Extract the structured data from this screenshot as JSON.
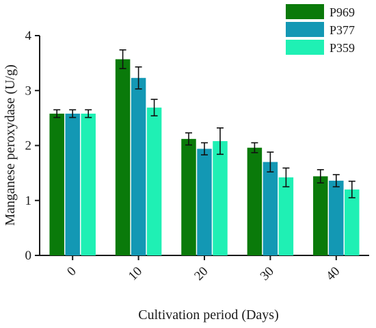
{
  "chart_data": {
    "type": "bar",
    "title": "",
    "xlabel": "Cultivation period (Days)",
    "ylabel": "Manganese peroxydase (U/g)",
    "ylim": [
      0,
      4
    ],
    "yticks": [
      "0",
      "1",
      "2",
      "3",
      "4"
    ],
    "categories": [
      "0",
      "10",
      "20",
      "30",
      "40"
    ],
    "grid": false,
    "legend_position": "top-right",
    "series": [
      {
        "name": "P969",
        "color": "#0a7a0a",
        "values": [
          2.58,
          3.57,
          2.12,
          1.96,
          1.44
        ],
        "errors": [
          0.07,
          0.17,
          0.11,
          0.09,
          0.12
        ]
      },
      {
        "name": "P377",
        "color": "#1398b4",
        "values": [
          2.58,
          3.23,
          1.94,
          1.7,
          1.36
        ],
        "errors": [
          0.07,
          0.2,
          0.11,
          0.18,
          0.11
        ]
      },
      {
        "name": "P359",
        "color": "#1ff0b4",
        "values": [
          2.58,
          2.69,
          2.08,
          1.42,
          1.2
        ],
        "errors": [
          0.07,
          0.15,
          0.24,
          0.17,
          0.15
        ]
      }
    ]
  }
}
